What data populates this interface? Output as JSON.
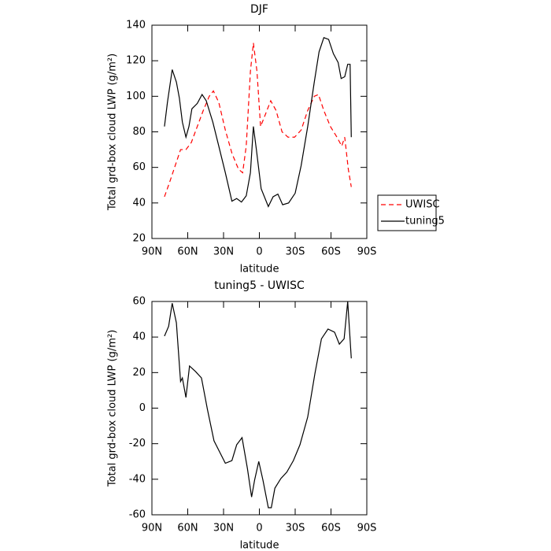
{
  "chart_data": [
    {
      "type": "line",
      "title": "DJF",
      "xlabel": "latitude",
      "ylabel": "Total grd-box cloud LWP (g/m²)",
      "xlim": [
        90,
        -90
      ],
      "ylim": [
        20,
        140
      ],
      "xticks": [
        {
          "value": 90,
          "label": "90N"
        },
        {
          "value": 60,
          "label": "60N"
        },
        {
          "value": 30,
          "label": "30N"
        },
        0,
        {
          "value": -30,
          "label": "30S"
        },
        {
          "value": -60,
          "label": "60S"
        },
        {
          "value": -90,
          "label": "90S"
        }
      ],
      "yticks": [
        20,
        40,
        60,
        80,
        100,
        120,
        140
      ],
      "legend": "right",
      "series": [
        {
          "name": "UWISC",
          "color": "#ff0000",
          "dash": "dashed",
          "x": [
            79.5,
            75.5,
            71,
            66,
            61.5,
            57,
            52,
            47,
            42,
            38.5,
            34,
            28.5,
            23,
            17.5,
            14,
            11,
            7.5,
            5,
            2,
            -1,
            -4,
            -9.5,
            -14,
            -19,
            -24,
            -29.5,
            -35,
            -40.5,
            -46,
            -49.5,
            -54,
            -59.5,
            -65,
            -69,
            -71.5,
            -74.5,
            -77
          ],
          "values": [
            43.5,
            51,
            60,
            70,
            70,
            74,
            83,
            92,
            100,
            103,
            96.6,
            81,
            68,
            59,
            57,
            72,
            114,
            130,
            114,
            83,
            88,
            97.5,
            92,
            80,
            77,
            77,
            81,
            92,
            100,
            101,
            92,
            83,
            77,
            72,
            77,
            59,
            49
          ]
        },
        {
          "name": "tuning5",
          "color": "#000000",
          "dash": "solid",
          "x": [
            79.5,
            77,
            73,
            69.5,
            67,
            64.5,
            61.5,
            59,
            56.5,
            52,
            48,
            44.5,
            39,
            34,
            28.5,
            23,
            19,
            15,
            11,
            7.5,
            5,
            2.5,
            -1.5,
            -7.5,
            -11.5,
            -15.5,
            -19.5,
            -24.5,
            -30,
            -35,
            -40.5,
            -46,
            -50,
            -54,
            -58,
            -62,
            -66,
            -68.5,
            -71.5,
            -74,
            -76,
            -77
          ],
          "values": [
            83,
            96.6,
            115,
            108,
            99,
            85.5,
            77,
            83,
            93,
            96,
            101,
            97.5,
            85.5,
            72,
            57,
            41,
            42.5,
            40.5,
            44,
            57,
            83,
            70,
            48,
            38,
            43.5,
            45,
            39,
            40,
            45.5,
            61,
            83,
            108,
            125,
            133,
            132,
            124,
            119,
            110,
            111,
            118,
            118,
            77
          ]
        }
      ]
    },
    {
      "type": "line",
      "title": "tuning5 - UWISC",
      "xlabel": "latitude",
      "ylabel": "Total grd-box cloud LWP (g/m²)",
      "xlim": [
        90,
        -90
      ],
      "ylim": [
        -60,
        60
      ],
      "xticks": [
        {
          "value": 90,
          "label": "90N"
        },
        {
          "value": 60,
          "label": "60N"
        },
        {
          "value": 30,
          "label": "30N"
        },
        0,
        {
          "value": -30,
          "label": "30S"
        },
        {
          "value": -60,
          "label": "60S"
        },
        {
          "value": -90,
          "label": "90S"
        }
      ],
      "yticks": [
        -60,
        -40,
        -20,
        0,
        20,
        40,
        60
      ],
      "series": [
        {
          "color": "#000000",
          "dash": "solid",
          "x": [
            79.5,
            76,
            73,
            69.5,
            66,
            64.5,
            61.5,
            58.5,
            53.5,
            48.5,
            43.5,
            38,
            34,
            28.5,
            23,
            19,
            14.5,
            10,
            6.5,
            4,
            0.5,
            -3,
            -7.5,
            -10,
            -13,
            -18,
            -23,
            -28.5,
            -34,
            -40.5,
            -46.5,
            -52,
            -57.5,
            -63,
            -67,
            -71,
            -74,
            -77
          ],
          "values": [
            40.5,
            46,
            59,
            48,
            15,
            17,
            6,
            23.7,
            20.6,
            17,
            -0.7,
            -18.4,
            -23.7,
            -31,
            -29.5,
            -20.6,
            -16.6,
            -34,
            -50,
            -40.5,
            -30,
            -40.5,
            -56,
            -56,
            -45,
            -39.6,
            -36,
            -29.5,
            -20.6,
            -5,
            19.3,
            39,
            44.5,
            42.7,
            36,
            39,
            60,
            28
          ]
        }
      ]
    }
  ]
}
